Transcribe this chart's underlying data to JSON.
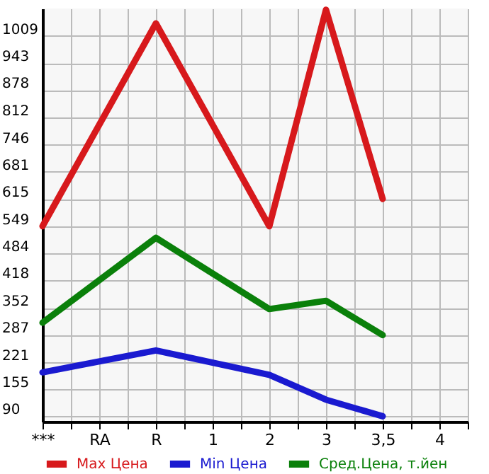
{
  "chart_data": {
    "type": "line",
    "categories": [
      "***",
      "RA",
      "R",
      "1",
      "2",
      "3",
      "3,5",
      "4"
    ],
    "series": [
      {
        "name": "Max Цена",
        "color": "#d7191c",
        "x": [
          "***",
          "R",
          "2",
          "3",
          "3,5"
        ],
        "values": [
          549,
          1039,
          549,
          1072,
          615
        ]
      },
      {
        "name": "Min Цена",
        "color": "#1a1ad0",
        "x": [
          "***",
          "R",
          "2",
          "3",
          "3,5"
        ],
        "values": [
          196,
          249,
          190,
          130,
          90
        ]
      },
      {
        "name": "Сред.Цена, т.йен",
        "color": "#0a800a",
        "x": [
          "***",
          "R",
          "2",
          "3",
          "3,5"
        ],
        "values": [
          316,
          521,
          349,
          369,
          286
        ]
      }
    ],
    "ylim": [
      77,
      1075
    ],
    "yticks": [
      90,
      155,
      221,
      287,
      352,
      418,
      484,
      549,
      615,
      681,
      746,
      812,
      878,
      943,
      1009
    ],
    "grid": true,
    "legend": "bottom",
    "line_style": "solid",
    "marker": "none"
  }
}
